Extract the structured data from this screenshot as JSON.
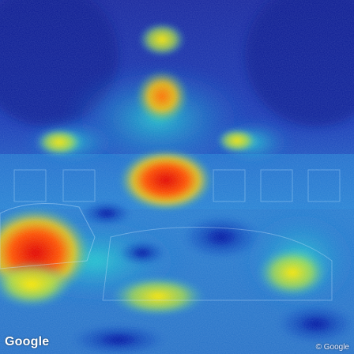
{
  "image": {
    "kind": "street-view-heatmap-overlay",
    "colormap": [
      "#00008b",
      "#0033ff",
      "#00bfff",
      "#33cc66",
      "#ffee00",
      "#ff8800",
      "#dd0000"
    ]
  },
  "watermarks": {
    "brand_logo": "Google",
    "copyright": "© Google"
  }
}
